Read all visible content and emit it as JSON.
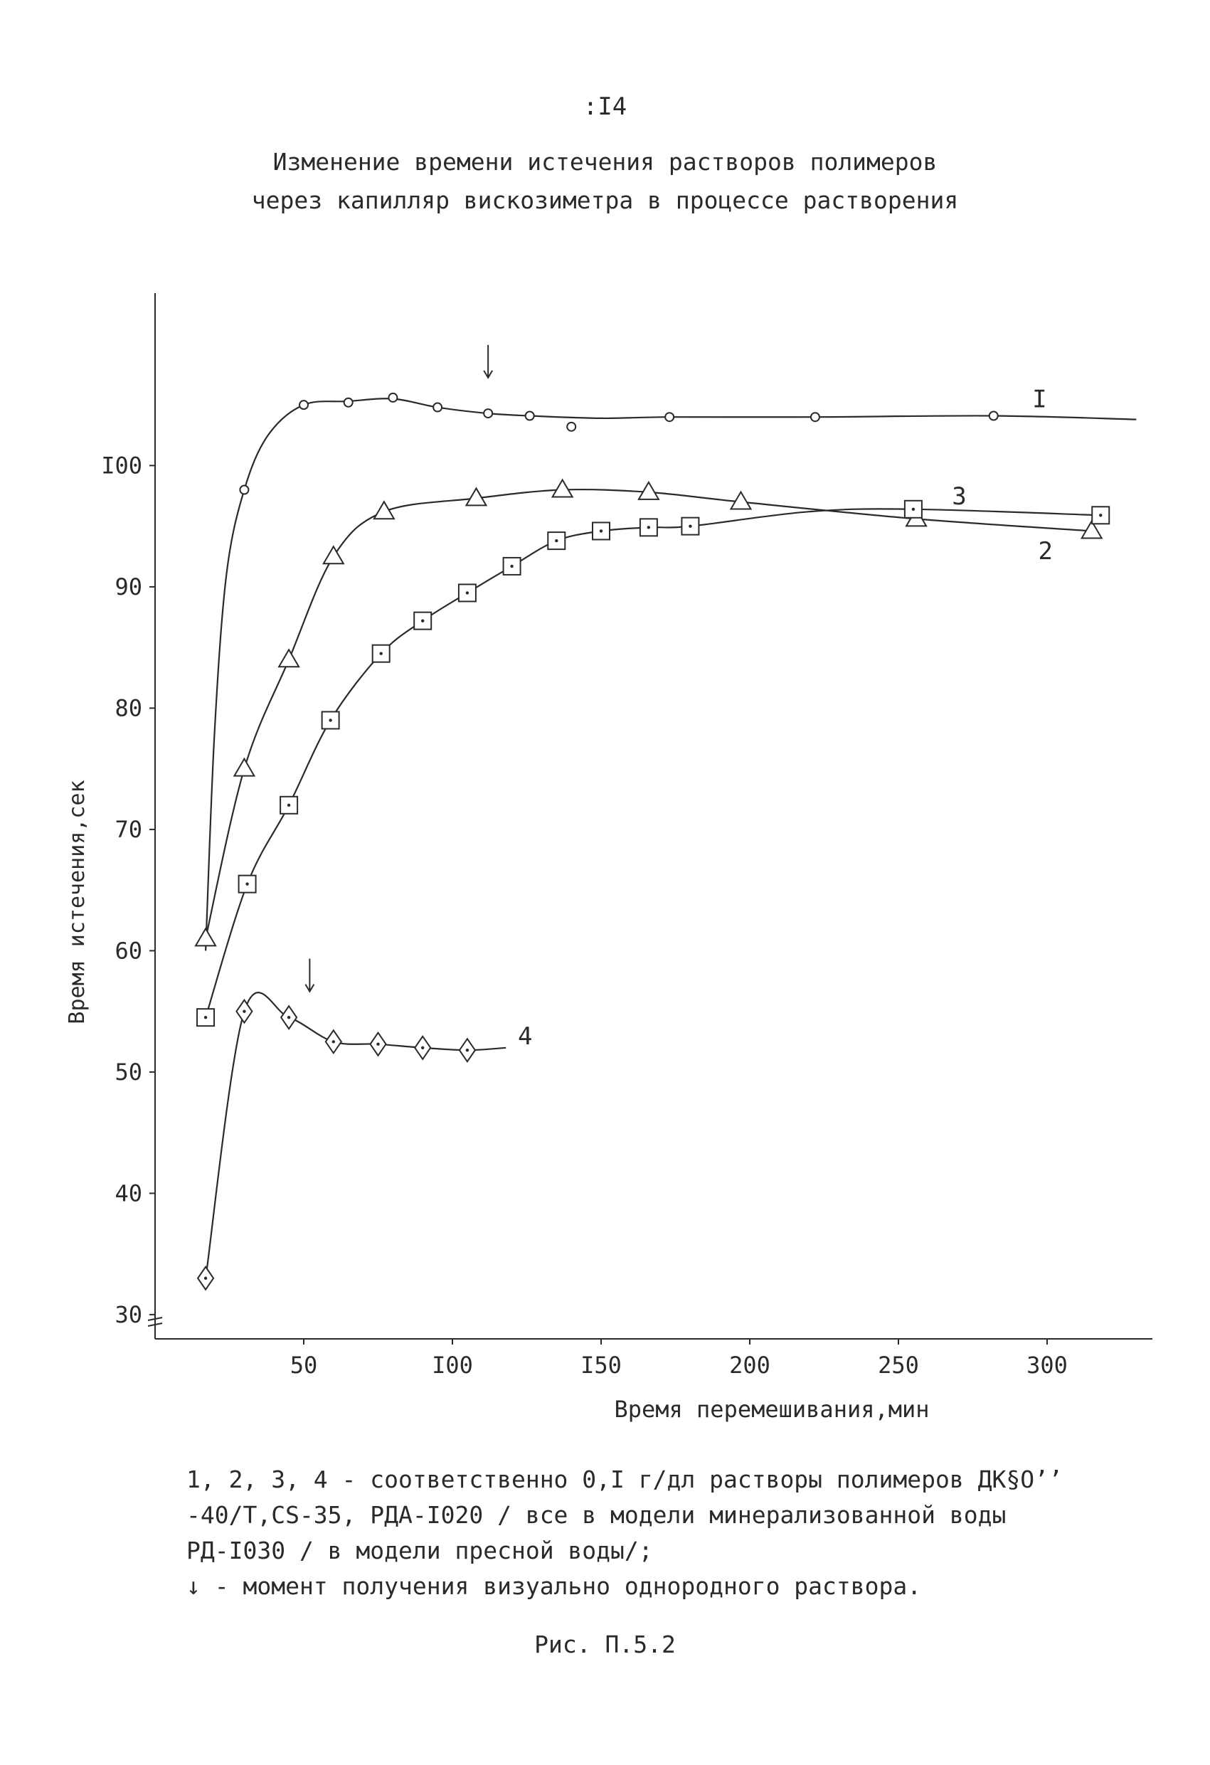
{
  "page": {
    "number": ":I4",
    "title_line1": "Изменение времени истечения растворов полимеров",
    "title_line2": "через капилляр вискозиметра в процессе растворения",
    "figure_label": "Рис. П.5.2"
  },
  "caption": {
    "line1": "1, 2, 3, 4 - соответственно 0,I г/дл растворы полимеров ДК§O’’",
    "line2": "-40/Т,CS-35, РДА-I020 / все в модели минерализованной воды",
    "line3": "РД-I030 / в модели пресной воды/;",
    "line4": "↓ - момент получения визуально однородного раствора."
  },
  "chart_data": {
    "type": "line",
    "title": "Изменение времени истечения растворов полимеров через капилляр вискозиметра в процессе растворения",
    "xlabel": "Время перемешивания,мин",
    "ylabel": "Время истечения,сек",
    "xlim": [
      0,
      330
    ],
    "ylim": [
      28,
      116
    ],
    "y_axis_break": true,
    "xticks": [
      50,
      100,
      150,
      200,
      250,
      300
    ],
    "xtick_labels": [
      "50",
      "I00",
      "I50",
      "200",
      "250",
      "300"
    ],
    "yticks": [
      30,
      40,
      50,
      60,
      70,
      80,
      90,
      100
    ],
    "ytick_labels": [
      "30",
      "40",
      "50",
      "60",
      "70",
      "80",
      "90",
      "I00"
    ],
    "series": [
      {
        "name": "I",
        "marker": "circle",
        "x": [
          30,
          50,
          65,
          80,
          95,
          112,
          126,
          140,
          173,
          222,
          282
        ],
        "y": [
          98,
          105,
          105.2,
          105.6,
          104.8,
          104.3,
          104.1,
          103.2,
          104,
          104,
          104.1
        ],
        "curve": [
          [
            17,
            60
          ],
          [
            20,
            78
          ],
          [
            24,
            91
          ],
          [
            30,
            98
          ],
          [
            38,
            102.5
          ],
          [
            50,
            105
          ],
          [
            65,
            105.3
          ],
          [
            80,
            105.5
          ],
          [
            95,
            104.8
          ],
          [
            112,
            104.3
          ],
          [
            126,
            104.1
          ],
          [
            150,
            103.9
          ],
          [
            173,
            104
          ],
          [
            222,
            104
          ],
          [
            282,
            104.1
          ],
          [
            330,
            103.8
          ]
        ],
        "arrow_x": 112,
        "label_x": 295,
        "label_y": 105.5
      },
      {
        "name": "2",
        "marker": "triangle",
        "x": [
          17,
          30,
          45,
          60,
          77,
          108,
          137,
          166,
          197,
          256,
          315
        ],
        "y": [
          61,
          75,
          84,
          92.5,
          96.2,
          97.3,
          98,
          97.8,
          97,
          95.6,
          94.6
        ],
        "curve": [
          [
            17,
            61
          ],
          [
            30,
            75
          ],
          [
            45,
            84
          ],
          [
            60,
            92.5
          ],
          [
            77,
            96.2
          ],
          [
            108,
            97.3
          ],
          [
            137,
            98
          ],
          [
            166,
            97.8
          ],
          [
            197,
            97
          ],
          [
            256,
            95.6
          ],
          [
            315,
            94.6
          ]
        ],
        "label_x": 297,
        "label_y": 93
      },
      {
        "name": "3",
        "marker": "square",
        "x": [
          17,
          31,
          45,
          59,
          76,
          90,
          105,
          120,
          135,
          150,
          166,
          180,
          255,
          318
        ],
        "y": [
          54.5,
          65.5,
          72,
          79,
          84.5,
          87.2,
          89.5,
          91.7,
          93.8,
          94.6,
          94.9,
          95,
          96.4,
          95.9
        ],
        "curve": [
          [
            17,
            54.5
          ],
          [
            31,
            65.5
          ],
          [
            45,
            72
          ],
          [
            59,
            79
          ],
          [
            76,
            84.5
          ],
          [
            90,
            87.2
          ],
          [
            105,
            89.5
          ],
          [
            120,
            91.7
          ],
          [
            135,
            93.8
          ],
          [
            150,
            94.6
          ],
          [
            166,
            94.9
          ],
          [
            180,
            95
          ],
          [
            220,
            96.2
          ],
          [
            255,
            96.4
          ],
          [
            318,
            95.9
          ]
        ],
        "label_x": 268,
        "label_y": 97.5
      },
      {
        "name": "4",
        "marker": "diamond",
        "x": [
          17,
          30,
          45,
          60,
          75,
          90,
          105
        ],
        "y": [
          33,
          55,
          54.5,
          52.5,
          52.3,
          52,
          51.8
        ],
        "curve": [
          [
            17,
            33
          ],
          [
            30,
            55
          ],
          [
            45,
            54.5
          ],
          [
            60,
            52.5
          ],
          [
            75,
            52.3
          ],
          [
            90,
            52
          ],
          [
            105,
            51.8
          ],
          [
            118,
            52
          ]
        ],
        "arrow_x": 52,
        "label_x": 122,
        "label_y": 53
      }
    ],
    "colors": {
      "ink": "#2a2a2a",
      "background": "#ffffff"
    }
  }
}
